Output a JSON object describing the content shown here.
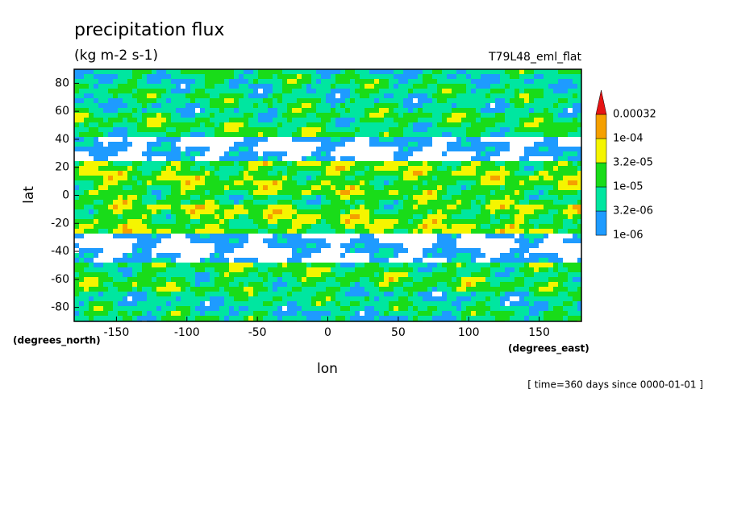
{
  "chart_data": {
    "type": "contour",
    "title": "precipitation flux",
    "subtitle": "(kg m-2 s-1)",
    "annotation": "T79L48_eml_flat",
    "time_note": "[ time=360 days since 0000-01-01 ]",
    "xlabel": "lon",
    "ylabel": "lat",
    "x_units": "(degrees_east)",
    "y_units": "(degrees_north)",
    "xlim": [
      -180,
      180
    ],
    "ylim": [
      -90,
      90
    ],
    "xticks": [
      -150,
      -100,
      -50,
      0,
      50,
      100,
      150
    ],
    "yticks": [
      -80,
      -60,
      -40,
      -20,
      0,
      20,
      40,
      60,
      80
    ],
    "levels": [
      {
        "value": 1e-06,
        "label": "1e-06"
      },
      {
        "value": 3.2e-06,
        "label": "3.2e-06"
      },
      {
        "value": 1e-05,
        "label": "1e-05"
      },
      {
        "value": 3.2e-05,
        "label": "3.2e-05"
      },
      {
        "value": 0.0001,
        "label": "1e-04"
      },
      0.00032
    ],
    "colors": [
      "#1e9bff",
      "#00e6a0",
      "#19dc19",
      "#f5f500",
      "#f5a000",
      "#e61414"
    ]
  }
}
